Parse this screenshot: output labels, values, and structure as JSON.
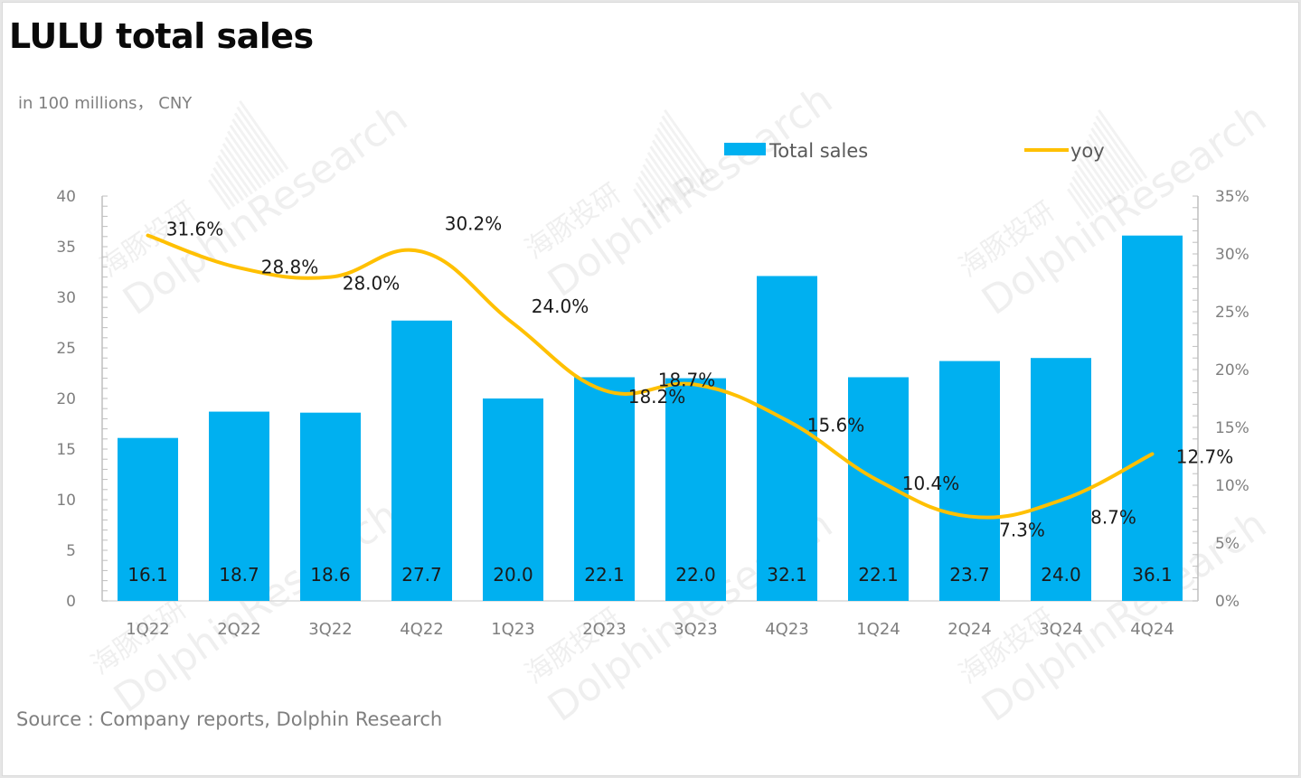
{
  "header": {
    "title": "LULU total sales",
    "unit": "in 100 millions， CNY"
  },
  "footer": {
    "source": "Source : Company reports, Dolphin Research"
  },
  "watermark": {
    "text_en": "DolphinResearch",
    "text_cn": "海豚投研"
  },
  "chart_data": {
    "type": "bar",
    "title": "LULU total sales",
    "subtitle": "in 100 millions， CNY",
    "xlabel": "",
    "ylabel": "",
    "categories": [
      "1Q22",
      "2Q22",
      "3Q22",
      "4Q22",
      "1Q23",
      "2Q23",
      "3Q23",
      "4Q23",
      "1Q24",
      "2Q24",
      "3Q24",
      "4Q24"
    ],
    "series": [
      {
        "name": "Total sales",
        "type": "bar",
        "axis": "left",
        "color": "#00b0f0",
        "values": [
          16.1,
          18.7,
          18.6,
          27.7,
          20.0,
          22.1,
          22.0,
          32.1,
          22.1,
          23.7,
          24.0,
          36.1
        ],
        "labels": [
          "16.1",
          "18.7",
          "18.6",
          "27.7",
          "20.0",
          "22.1",
          "22.0",
          "32.1",
          "22.1",
          "23.7",
          "24.0",
          "36.1"
        ]
      },
      {
        "name": "yoy",
        "type": "line",
        "axis": "right",
        "smooth": true,
        "color": "#ffc000",
        "values": [
          31.6,
          28.8,
          28.0,
          30.2,
          24.0,
          18.2,
          18.7,
          15.6,
          10.4,
          7.3,
          8.7,
          12.7
        ],
        "labels": [
          "31.6%",
          "28.8%",
          "28.0%",
          "30.2%",
          "24.0%",
          "18.2%",
          "18.7%",
          "15.6%",
          "10.4%",
          "7.3%",
          "8.7%",
          "12.7%"
        ]
      }
    ],
    "y_left": {
      "range": [
        0,
        40
      ],
      "ticks": [
        0,
        5,
        10,
        15,
        20,
        25,
        30,
        35,
        40
      ],
      "tick_labels": [
        "0",
        "5",
        "10",
        "15",
        "20",
        "25",
        "30",
        "35",
        "40"
      ]
    },
    "y_right": {
      "range": [
        0,
        35
      ],
      "unit": "%",
      "ticks": [
        0,
        5,
        10,
        15,
        20,
        25,
        30,
        35
      ],
      "tick_labels": [
        "0%",
        "5%",
        "10%",
        "15%",
        "20%",
        "25%",
        "30%",
        "35%"
      ]
    },
    "grid": false,
    "legend": {
      "position": "top-right",
      "entries": [
        {
          "label": "Total sales",
          "swatch": "bar",
          "color": "#00b0f0"
        },
        {
          "label": "yoy",
          "swatch": "line",
          "color": "#ffc000"
        }
      ]
    }
  }
}
